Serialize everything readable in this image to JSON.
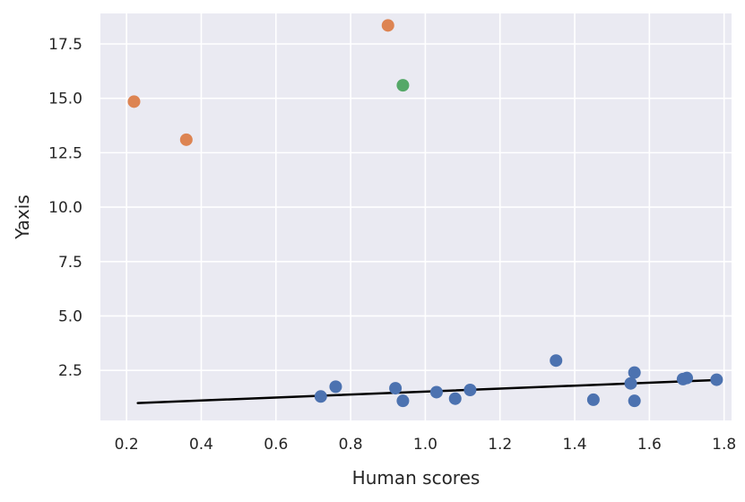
{
  "chart_data": {
    "type": "scatter",
    "title": "",
    "xlabel": "Human scores",
    "ylabel": "Yaxis",
    "xlim": [
      0.13,
      1.82
    ],
    "ylim": [
      0.2,
      18.9
    ],
    "grid": true,
    "background": "#EAEAF2",
    "xticks": [
      0.2,
      0.4,
      0.6,
      0.8,
      1.0,
      1.2,
      1.4,
      1.6,
      1.8
    ],
    "xtick_labels": [
      "0.2",
      "0.4",
      "0.6",
      "0.8",
      "1.0",
      "1.2",
      "1.4",
      "1.6",
      "1.8"
    ],
    "yticks": [
      2.5,
      5.0,
      7.5,
      10.0,
      12.5,
      15.0,
      17.5
    ],
    "ytick_labels": [
      "2.5",
      "5.0",
      "7.5",
      "10.0",
      "12.5",
      "15.0",
      "17.5"
    ],
    "series": [
      {
        "color": "#4C72B0",
        "points": [
          [
            0.72,
            1.3
          ],
          [
            0.76,
            1.75
          ],
          [
            0.92,
            1.68
          ],
          [
            0.94,
            1.1
          ],
          [
            1.03,
            1.5
          ],
          [
            1.08,
            1.2
          ],
          [
            1.12,
            1.6
          ],
          [
            1.35,
            2.95
          ],
          [
            1.45,
            1.15
          ],
          [
            1.55,
            1.9
          ],
          [
            1.56,
            2.4
          ],
          [
            1.56,
            1.1
          ],
          [
            1.69,
            2.1
          ],
          [
            1.7,
            2.15
          ],
          [
            1.78,
            2.07
          ]
        ]
      },
      {
        "color": "#DD8452",
        "points": [
          [
            0.22,
            14.85
          ],
          [
            0.36,
            13.1
          ],
          [
            0.9,
            18.35
          ]
        ]
      },
      {
        "color": "#55A868",
        "points": [
          [
            0.94,
            15.6
          ]
        ]
      }
    ],
    "fit_line": {
      "color": "#000000",
      "points": [
        [
          0.23,
          1.0
        ],
        [
          1.77,
          2.05
        ]
      ]
    }
  }
}
